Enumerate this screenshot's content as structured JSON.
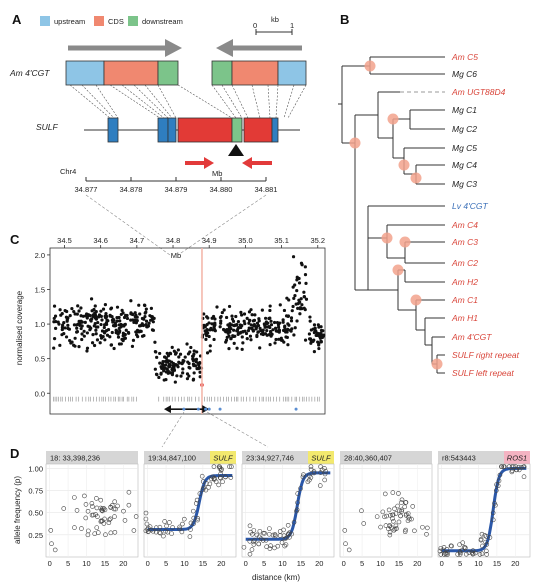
{
  "panels": {
    "a": "A",
    "b": "B",
    "c": "C",
    "d": "D"
  },
  "panel_a": {
    "legend": {
      "upstream": "upstream",
      "cds": "CDS",
      "downstream": "downstream"
    },
    "colors": {
      "upstream": "#8ec5e6",
      "cds": "#f08870",
      "downstream": "#7cc48a",
      "sulf": "#e23a36",
      "sulf_blue": "#2f7ec0",
      "arrow": "#e23a3a"
    },
    "scale_label": "kb",
    "scale_start": "0",
    "scale_end": "1",
    "am4cgt_label": "Am 4'CGT",
    "sulf_label": "SULF",
    "mb_label": "Mb",
    "chr_label": "Chr4",
    "chr_ticks": [
      "34.877",
      "34.878",
      "34.879",
      "34.880",
      "34.881"
    ]
  },
  "panel_b": {
    "leaves": [
      {
        "label": "Am C5",
        "color": "red"
      },
      {
        "label": "Mg C6",
        "color": "black"
      },
      {
        "label": "Am UGT88D4",
        "color": "red"
      },
      {
        "label": "Mg C1",
        "color": "black"
      },
      {
        "label": "Mg C2",
        "color": "black"
      },
      {
        "label": "Mg C5",
        "color": "black"
      },
      {
        "label": "Mg C4",
        "color": "black"
      },
      {
        "label": "Mg C3",
        "color": "black"
      },
      {
        "label": "Lv 4'CGT",
        "color": "blue"
      },
      {
        "label": "Am C4",
        "color": "red"
      },
      {
        "label": "Am C3",
        "color": "red"
      },
      {
        "label": "Am C2",
        "color": "red"
      },
      {
        "label": "Am H2",
        "color": "red"
      },
      {
        "label": "Am C1",
        "color": "red"
      },
      {
        "label": "Am H1",
        "color": "red"
      },
      {
        "label": "Am 4'CGT",
        "color": "red"
      },
      {
        "label": "SULF right repeat",
        "color": "red"
      },
      {
        "label": "SULF left repeat",
        "color": "red"
      }
    ]
  },
  "panel_c": {
    "mb_label": "Mb",
    "ylabel": "normalised coverage",
    "x_ticks": [
      "34.5",
      "34.6",
      "34.7",
      "34.8",
      "34.9",
      "35.0",
      "35.1",
      "35.2"
    ],
    "y_ticks": [
      "0.0",
      "0.5",
      "1.0",
      "1.5",
      "2.0"
    ],
    "chart_data": {
      "type": "scatter",
      "xlabel": "Mb",
      "ylabel": "normalised coverage",
      "xlim": [
        34.46,
        35.22
      ],
      "ylim": [
        -0.3,
        2.1
      ],
      "x_ticks": [
        34.5,
        34.6,
        34.7,
        34.8,
        34.9,
        35.0,
        35.1,
        35.2
      ],
      "y_ticks": [
        0.0,
        0.5,
        1.0,
        1.5,
        2.0
      ],
      "marker_line_x": 34.88,
      "deletion_range": [
        34.775,
        34.9
      ],
      "segments": [
        {
          "x": [
            34.47,
            34.75
          ],
          "mean": 1.0,
          "sd": 0.16
        },
        {
          "x": [
            34.75,
            34.88
          ],
          "mean": 0.42,
          "sd": 0.12
        },
        {
          "x": [
            34.88,
            35.13
          ],
          "mean": 0.95,
          "sd": 0.14
        },
        {
          "x": [
            35.13,
            35.17
          ],
          "mean": 1.35,
          "sd": 0.25
        },
        {
          "x": [
            35.17,
            35.22
          ],
          "mean": 0.82,
          "sd": 0.13
        }
      ],
      "blue_marker_x": [
        34.83,
        34.87,
        34.89,
        34.9,
        34.93,
        35.14
      ]
    }
  },
  "panel_d": {
    "ylabel": "allele frequency (p)",
    "xlabel": "distance (km)",
    "x_ticks": [
      "0",
      "5",
      "10",
      "15",
      "20"
    ],
    "y_ticks": [
      "0.25",
      "0.50",
      "0.75",
      "1.00"
    ],
    "colors": {
      "fit": "#2a57a8",
      "sulf_tag": "#f3e96e",
      "ros1_tag": "#f4b3c2",
      "header": "#d6d6d6"
    },
    "chart_data": [
      {
        "type": "scatter",
        "header": "18: 33,398,236",
        "tag": "",
        "fit": "none",
        "cluster": {
          "x_mean": 14,
          "y_mean": 0.5
        }
      },
      {
        "type": "scatter",
        "header": "19:34,847,100",
        "tag": "SULF",
        "fit": "sigmoid",
        "low": 0.31,
        "high": 0.92,
        "center": 14
      },
      {
        "type": "scatter",
        "header": "23:34,927,746",
        "tag": "SULF",
        "fit": "sigmoid",
        "low": 0.2,
        "high": 0.95,
        "center": 14
      },
      {
        "type": "scatter",
        "header": "28:40,360,407",
        "tag": "",
        "fit": "none",
        "cluster": {
          "x_mean": 15,
          "y_mean": 0.45
        }
      },
      {
        "type": "scatter",
        "header": "r8:543443",
        "tag": "ROS1",
        "fit": "sigmoid",
        "low": 0.07,
        "high": 1.0,
        "center": 14
      }
    ]
  }
}
